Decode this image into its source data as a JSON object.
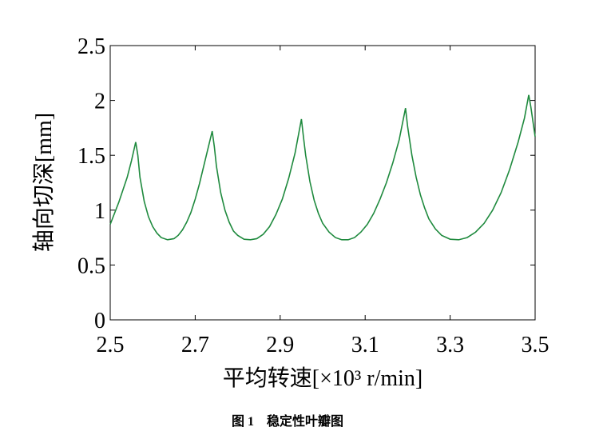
{
  "chart_data": {
    "type": "line",
    "xlabel": "平均转速[×10³ r/min]",
    "ylabel": "轴向切深[mm]",
    "caption": "图 1　稳定性叶瓣图",
    "color": "#1f8a3e",
    "x": [
      2.5,
      2.52,
      2.54,
      2.55,
      2.56,
      2.565,
      2.57,
      2.58,
      2.59,
      2.6,
      2.61,
      2.62,
      2.635,
      2.65,
      2.66,
      2.67,
      2.68,
      2.69,
      2.7,
      2.71,
      2.72,
      2.73,
      2.74,
      2.745,
      2.75,
      2.76,
      2.77,
      2.78,
      2.79,
      2.8,
      2.815,
      2.83,
      2.845,
      2.86,
      2.875,
      2.89,
      2.905,
      2.92,
      2.935,
      2.95,
      2.955,
      2.96,
      2.97,
      2.98,
      2.99,
      3.0,
      3.015,
      3.03,
      3.045,
      3.06,
      3.075,
      3.09,
      3.105,
      3.12,
      3.135,
      3.15,
      3.165,
      3.18,
      3.195,
      3.2,
      3.21,
      3.22,
      3.23,
      3.24,
      3.25,
      3.265,
      3.28,
      3.3,
      3.32,
      3.34,
      3.36,
      3.38,
      3.4,
      3.42,
      3.44,
      3.46,
      3.475,
      3.485,
      3.49,
      3.5
    ],
    "values": [
      0.87,
      1.07,
      1.3,
      1.45,
      1.62,
      1.5,
      1.3,
      1.08,
      0.94,
      0.85,
      0.79,
      0.75,
      0.73,
      0.74,
      0.77,
      0.82,
      0.89,
      0.98,
      1.1,
      1.24,
      1.4,
      1.56,
      1.72,
      1.58,
      1.4,
      1.16,
      1.0,
      0.89,
      0.81,
      0.77,
      0.735,
      0.73,
      0.74,
      0.78,
      0.85,
      0.96,
      1.1,
      1.29,
      1.52,
      1.83,
      1.66,
      1.5,
      1.26,
      1.09,
      0.97,
      0.88,
      0.8,
      0.75,
      0.73,
      0.73,
      0.75,
      0.8,
      0.87,
      0.97,
      1.1,
      1.25,
      1.43,
      1.64,
      1.93,
      1.76,
      1.5,
      1.3,
      1.14,
      1.02,
      0.92,
      0.83,
      0.77,
      0.735,
      0.73,
      0.75,
      0.8,
      0.88,
      1.0,
      1.16,
      1.37,
      1.62,
      1.84,
      2.05,
      1.94,
      1.67
    ],
    "xlim": [
      2.5,
      3.5
    ],
    "xticks": [
      2.5,
      2.7,
      2.9,
      3.1,
      3.3,
      3.5
    ],
    "ylim": [
      0,
      2.5
    ],
    "yticks": [
      0,
      0.5,
      1,
      1.5,
      2,
      2.5
    ]
  }
}
